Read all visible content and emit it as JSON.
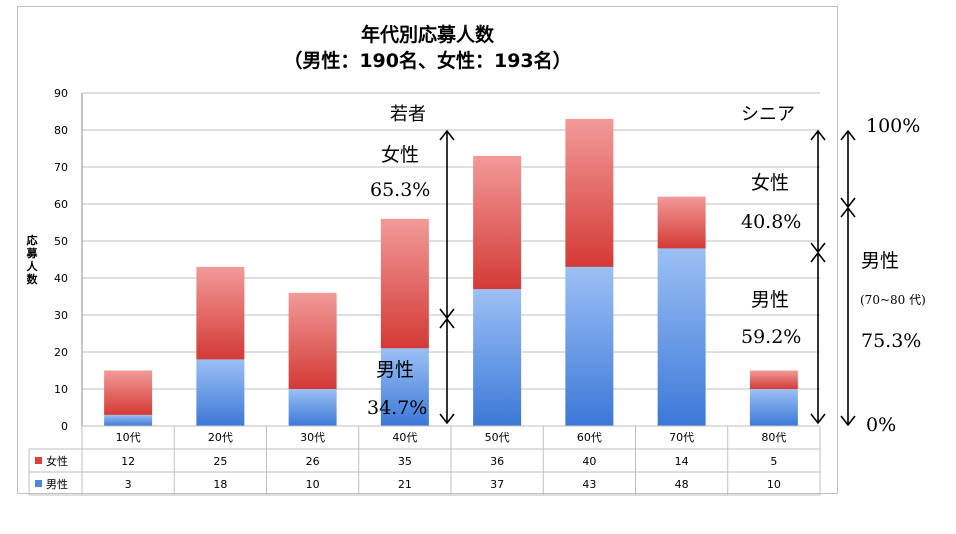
{
  "chart_data": {
    "type": "bar",
    "stacked": true,
    "title": "年代別応募人数",
    "subtitle": "（男性：190名、女性：193名）",
    "ylabel": "応募人数",
    "xlabel": "",
    "ylim": [
      0,
      90
    ],
    "yticks": [
      0,
      10,
      20,
      30,
      40,
      50,
      60,
      70,
      80,
      90
    ],
    "grid": true,
    "categories": [
      "10代",
      "20代",
      "30代",
      "40代",
      "50代",
      "60代",
      "70代",
      "80代"
    ],
    "series": [
      {
        "name": "男性",
        "color": "#4f86d9",
        "values": [
          3,
          18,
          10,
          21,
          37,
          43,
          48,
          10
        ]
      },
      {
        "name": "女性",
        "color": "#d9403e",
        "values": [
          12,
          25,
          26,
          35,
          36,
          40,
          14,
          5
        ]
      }
    ],
    "data_table_order": [
      "女性",
      "男性"
    ]
  },
  "annotations": {
    "young_label": "若者",
    "young_female_label": "女性",
    "young_female_pct": "65.3%",
    "young_male_label": "男性",
    "young_male_pct": "34.7%",
    "senior_label": "シニア",
    "senior_female_label": "女性",
    "senior_female_pct": "40.8%",
    "senior_male_label": "男性",
    "senior_male_pct": "59.2%",
    "scale_top": "100%",
    "scale_bottom": "0%",
    "scale_male_label": "男性",
    "scale_male_range": "(70~80 代)",
    "scale_male_pct": "75.3%"
  }
}
